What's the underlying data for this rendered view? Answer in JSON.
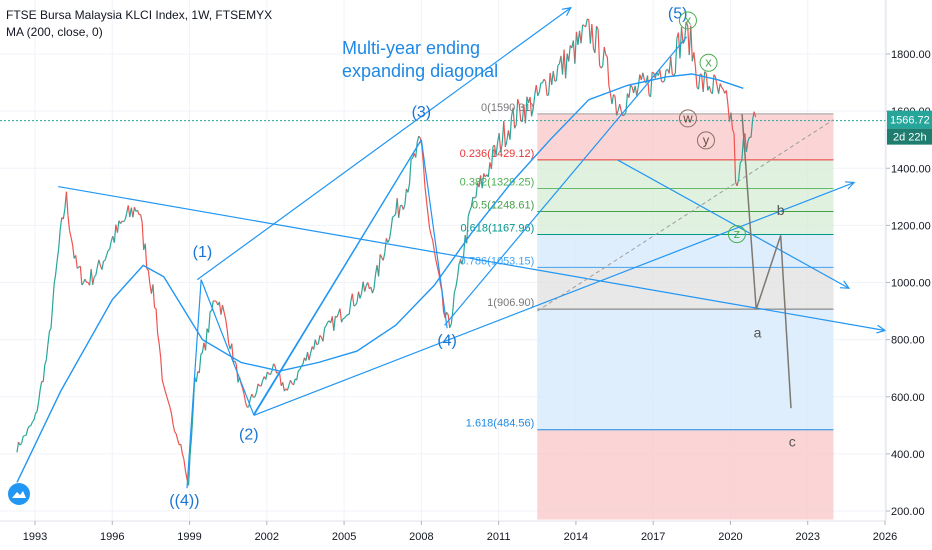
{
  "header": {
    "title": "FTSE Bursa Malaysia KLCI Index, 1W, FTSEMYX",
    "indicator": "MA (200, close, 0)"
  },
  "price_label": {
    "value": "1566.72",
    "countdown": "2d 22h"
  },
  "annotation": {
    "line1": "Multi-year ending",
    "line2": "expanding diagonal"
  },
  "colors": {
    "price_up": "#26a69a",
    "price_down": "#ef5350",
    "trendline": "#2196f3",
    "ma": "#2196f3",
    "projection": "#7d7870",
    "last_price": "#26a69a",
    "fib_red": "#f9c7c7",
    "fib_green": "#d6ecd6",
    "fib_blue": "#d4e8fb",
    "fib_grey": "#e0e0e0"
  },
  "chart_data": {
    "type": "line",
    "title": "FTSE Bursa Malaysia KLCI Index, 1W, FTSEMYX",
    "xlim": [
      1992.3,
      2027.0
    ],
    "ylim": [
      170,
      1980
    ],
    "x_ticks": [
      1993,
      1996,
      1999,
      2002,
      2005,
      2008,
      2011,
      2014,
      2017,
      2020,
      2023,
      2026
    ],
    "x_tick_labels": [
      "1993",
      "1996",
      "1999",
      "2002",
      "2005",
      "2008",
      "2011",
      "2014",
      "2017",
      "2020",
      "2023",
      "2026"
    ],
    "y_ticks": [
      200,
      400,
      600,
      800,
      1000,
      1200,
      1400,
      1600,
      1800
    ],
    "y_tick_labels": [
      "200.00",
      "400.00",
      "600.00",
      "800.00",
      "1000.00",
      "1200.00",
      "1400.00",
      "1600.00",
      "1800.00"
    ],
    "series": [
      {
        "name": "FTSE Bursa Malaysia KLCI Index",
        "x": [
          1992.3,
          1993.0,
          1993.5,
          1993.9,
          1994.2,
          1994.6,
          1995.0,
          1995.5,
          1996.0,
          1996.5,
          1997.0,
          1997.3,
          1997.7,
          1998.0,
          1998.4,
          1998.7,
          1998.95,
          1999.2,
          1999.6,
          2000.0,
          2000.3,
          2000.8,
          2001.2,
          2001.6,
          2002.2,
          2002.8,
          2003.2,
          2003.8,
          2004.4,
          2005.0,
          2005.6,
          2006.2,
          2006.8,
          2007.3,
          2007.8,
          2008.0,
          2008.3,
          2008.6,
          2008.9,
          2009.1,
          2009.5,
          2010.0,
          2010.6,
          2011.2,
          2011.8,
          2012.4,
          2013.0,
          2013.6,
          2014.3,
          2014.6,
          2015.0,
          2015.6,
          2016.2,
          2016.8,
          2017.3,
          2017.8,
          2018.1,
          2018.4,
          2018.8,
          2019.3,
          2019.8,
          2020.1,
          2020.25,
          2020.5,
          2020.8,
          2021.0
        ],
        "values": [
          420,
          520,
          760,
          1100,
          1300,
          1050,
          1000,
          1050,
          1150,
          1220,
          1270,
          1100,
          900,
          620,
          500,
          420,
          280,
          650,
          780,
          960,
          900,
          700,
          560,
          620,
          700,
          620,
          680,
          780,
          840,
          900,
          960,
          1000,
          1200,
          1300,
          1450,
          1480,
          1200,
          1050,
          880,
          850,
          1050,
          1280,
          1400,
          1520,
          1600,
          1630,
          1720,
          1770,
          1860,
          1880,
          1800,
          1620,
          1660,
          1690,
          1750,
          1780,
          1860,
          1860,
          1700,
          1690,
          1630,
          1550,
          1300,
          1470,
          1560,
          1566
        ]
      },
      {
        "name": "MA (200, close, 0)",
        "x": [
          1992.3,
          1994.0,
          1996.0,
          1997.2,
          1998.0,
          1999.5,
          2001.0,
          2002.5,
          2004.0,
          2005.5,
          2007.0,
          2008.5,
          2010.0,
          2011.5,
          2013.0,
          2014.5,
          2016.0,
          2017.5,
          2018.5,
          2019.5,
          2020.5
        ],
        "values": [
          300,
          620,
          940,
          1060,
          1020,
          800,
          720,
          690,
          720,
          760,
          850,
          990,
          1180,
          1350,
          1500,
          1640,
          1690,
          1720,
          1730,
          1710,
          1680
        ]
      }
    ],
    "wave_labels": [
      {
        "label": "(1)",
        "x": 1999.5,
        "y": 1090
      },
      {
        "label": "(2)",
        "x": 2001.3,
        "y": 450
      },
      {
        "label": "(3)",
        "x": 2008.0,
        "y": 1580
      },
      {
        "label": "(4)",
        "x": 2009.0,
        "y": 780
      },
      {
        "label": "((4))",
        "x": 1998.8,
        "y": 220
      },
      {
        "label": "(5)",
        "x": 2017.95,
        "y": 1925
      },
      {
        "label": "x",
        "x": 2018.35,
        "y": 1900
      },
      {
        "label": "x",
        "x": 2019.15,
        "y": 1752
      },
      {
        "label": "w",
        "x": 2018.35,
        "y": 1557
      },
      {
        "label": "y",
        "x": 2019.05,
        "y": 1480
      },
      {
        "label": "z",
        "x": 2020.25,
        "y": 1152
      },
      {
        "label": "a",
        "x": 2021.05,
        "y": 808
      },
      {
        "label": "b",
        "x": 2021.95,
        "y": 1237
      },
      {
        "label": "c",
        "x": 2022.4,
        "y": 425
      }
    ],
    "fibonacci": [
      {
        "label": "0(1590.31)",
        "value": 1590.31
      },
      {
        "label": "0.236(1429.12)",
        "value": 1429.12
      },
      {
        "label": "0.382(1329.25)",
        "value": 1329.25
      },
      {
        "label": "0.5(1248.61)",
        "value": 1248.61
      },
      {
        "label": "0.618(1167.96)",
        "value": 1167.96
      },
      {
        "label": "0.786(1053.15)",
        "value": 1053.15
      },
      {
        "label": "1(906.90)",
        "value": 906.9
      },
      {
        "label": "1.618(484.56)",
        "value": 484.56
      }
    ],
    "last_price": 1566.72,
    "grid": true
  }
}
